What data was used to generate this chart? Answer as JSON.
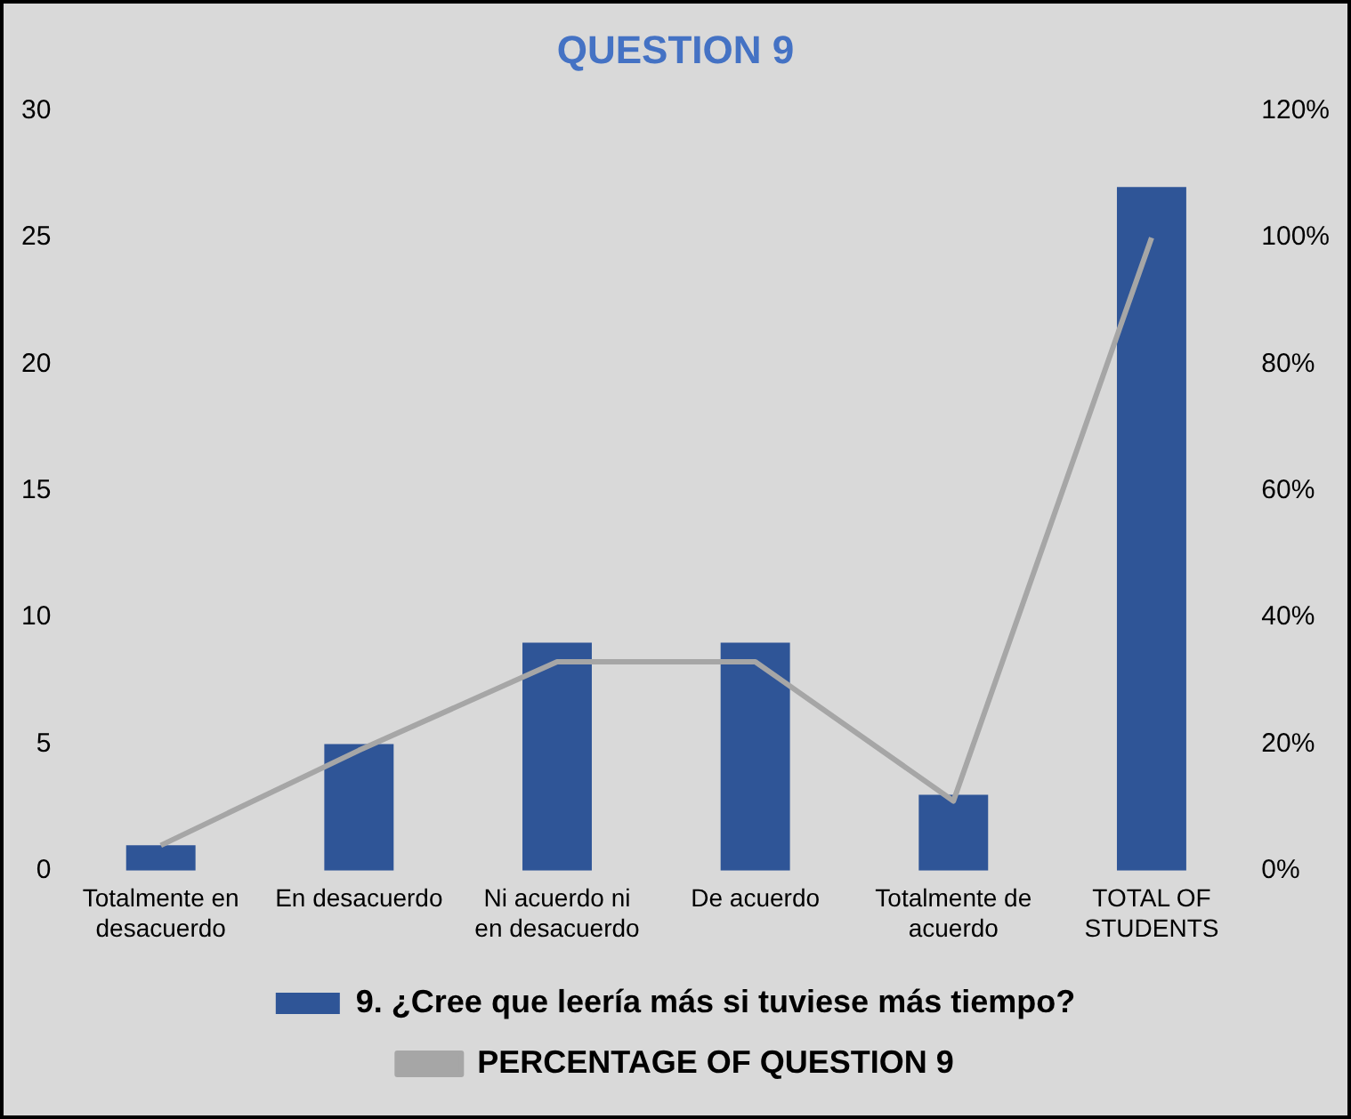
{
  "chart_data": {
    "type": "bar",
    "title": "QUESTION 9",
    "categories": [
      "Totalmente en desacuerdo",
      "En desacuerdo",
      "Ni acuerdo ni en desacuerdo",
      "De acuerdo",
      "Totalmente de acuerdo",
      "TOTAL OF STUDENTS"
    ],
    "series": [
      {
        "name": "9. ¿Cree que leería más si tuviese más tiempo?",
        "color": "#2f5597",
        "values": [
          1,
          5,
          9,
          9,
          3,
          27
        ]
      },
      {
        "name": "PERCENTAGE OF QUESTION 9",
        "type": "line",
        "axis": "y2",
        "color": "#a6a6a6",
        "values": [
          4,
          19,
          33,
          33,
          11,
          100
        ]
      }
    ],
    "ylim": [
      0,
      30
    ],
    "yticks": [
      0,
      5,
      10,
      15,
      20,
      25,
      30
    ],
    "y2lim": [
      0,
      120
    ],
    "y2ticks": [
      {
        "value": 0,
        "label": "0%"
      },
      {
        "value": 20,
        "label": "20%"
      },
      {
        "value": 40,
        "label": "40%"
      },
      {
        "value": 60,
        "label": "60%"
      },
      {
        "value": 80,
        "label": "80%"
      },
      {
        "value": 100,
        "label": "100%"
      },
      {
        "value": 120,
        "label": "120%"
      }
    ],
    "grid": false,
    "legend": "bottom",
    "marker": "none",
    "line_style": "solid"
  }
}
